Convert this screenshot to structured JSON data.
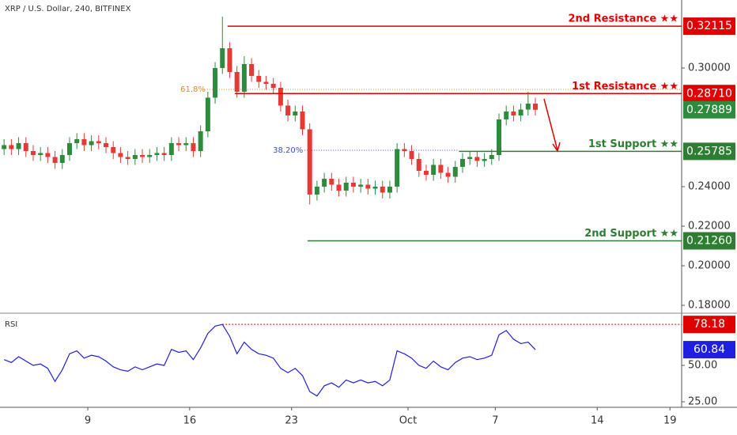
{
  "chart_data": [
    {
      "type": "candlestick",
      "title": "XRP / U.S. Dollar, 240, BITFINEX",
      "x": [
        3.25,
        3.75,
        4.25,
        4.75,
        5.25,
        5.75,
        6.25,
        6.75,
        7.25,
        7.75,
        8.25,
        8.75,
        9.25,
        9.75,
        10.25,
        10.75,
        11.25,
        11.75,
        12.25,
        12.75,
        13.25,
        13.75,
        14.25,
        14.75,
        15.25,
        15.75,
        16.25,
        16.75,
        17.25,
        17.75,
        18.25,
        18.75,
        19.25,
        19.75,
        20.25,
        20.75,
        21.25,
        21.75,
        22.25,
        22.75,
        23.25,
        23.75,
        24.25,
        24.75,
        25.25,
        25.75,
        26.25,
        26.75,
        27.25,
        27.75,
        28.25,
        28.75,
        29.25,
        29.75,
        30.25,
        30.75,
        31.25,
        31.75,
        32.25,
        32.75,
        33.25,
        33.75,
        34.25,
        34.75,
        35.25,
        35.75,
        36.25,
        36.75,
        37.25,
        37.75,
        38.25,
        38.75,
        39.25,
        39.75
      ],
      "open": [
        0.259,
        0.261,
        0.259,
        0.262,
        0.258,
        0.256,
        0.257,
        0.255,
        0.252,
        0.256,
        0.262,
        0.264,
        0.261,
        0.263,
        0.262,
        0.26,
        0.257,
        0.255,
        0.254,
        0.256,
        0.255,
        0.256,
        0.257,
        0.256,
        0.262,
        0.261,
        0.262,
        0.258,
        0.268,
        0.285,
        0.3,
        0.31,
        0.298,
        0.288,
        0.302,
        0.296,
        0.293,
        0.292,
        0.29,
        0.281,
        0.276,
        0.278,
        0.269,
        0.236,
        0.24,
        0.244,
        0.241,
        0.238,
        0.242,
        0.24,
        0.241,
        0.239,
        0.24,
        0.237,
        0.24,
        0.259,
        0.258,
        0.254,
        0.248,
        0.246,
        0.251,
        0.247,
        0.245,
        0.25,
        0.254,
        0.255,
        0.253,
        0.254,
        0.256,
        0.274,
        0.278,
        0.276,
        0.279,
        0.282
      ],
      "high": [
        0.264,
        0.264,
        0.265,
        0.265,
        0.261,
        0.26,
        0.26,
        0.258,
        0.259,
        0.265,
        0.267,
        0.267,
        0.266,
        0.266,
        0.265,
        0.263,
        0.26,
        0.258,
        0.259,
        0.259,
        0.259,
        0.26,
        0.26,
        0.265,
        0.265,
        0.265,
        0.265,
        0.271,
        0.288,
        0.303,
        0.326,
        0.313,
        0.301,
        0.306,
        0.305,
        0.299,
        0.296,
        0.295,
        0.293,
        0.284,
        0.281,
        0.281,
        0.272,
        0.243,
        0.247,
        0.247,
        0.244,
        0.245,
        0.245,
        0.244,
        0.244,
        0.243,
        0.243,
        0.243,
        0.262,
        0.262,
        0.261,
        0.257,
        0.251,
        0.254,
        0.254,
        0.25,
        0.253,
        0.257,
        0.258,
        0.258,
        0.257,
        0.259,
        0.277,
        0.281,
        0.281,
        0.282,
        0.288,
        0.285
      ],
      "low": [
        0.256,
        0.256,
        0.256,
        0.255,
        0.253,
        0.253,
        0.252,
        0.249,
        0.249,
        0.253,
        0.259,
        0.258,
        0.258,
        0.259,
        0.257,
        0.254,
        0.252,
        0.251,
        0.251,
        0.252,
        0.252,
        0.253,
        0.253,
        0.253,
        0.258,
        0.258,
        0.255,
        0.255,
        0.265,
        0.282,
        0.297,
        0.295,
        0.285,
        0.285,
        0.293,
        0.29,
        0.289,
        0.287,
        0.278,
        0.273,
        0.273,
        0.266,
        0.231,
        0.233,
        0.237,
        0.238,
        0.235,
        0.235,
        0.237,
        0.237,
        0.236,
        0.236,
        0.234,
        0.234,
        0.237,
        0.255,
        0.251,
        0.245,
        0.243,
        0.243,
        0.244,
        0.242,
        0.242,
        0.247,
        0.251,
        0.25,
        0.25,
        0.251,
        0.253,
        0.271,
        0.273,
        0.273,
        0.276,
        0.276
      ],
      "close": [
        0.261,
        0.259,
        0.262,
        0.258,
        0.256,
        0.257,
        0.255,
        0.252,
        0.256,
        0.262,
        0.264,
        0.261,
        0.263,
        0.262,
        0.26,
        0.257,
        0.255,
        0.254,
        0.256,
        0.255,
        0.256,
        0.257,
        0.256,
        0.262,
        0.261,
        0.262,
        0.258,
        0.268,
        0.285,
        0.3,
        0.31,
        0.298,
        0.288,
        0.302,
        0.296,
        0.293,
        0.292,
        0.29,
        0.281,
        0.276,
        0.278,
        0.269,
        0.236,
        0.24,
        0.244,
        0.241,
        0.238,
        0.242,
        0.24,
        0.241,
        0.239,
        0.24,
        0.237,
        0.24,
        0.259,
        0.258,
        0.254,
        0.248,
        0.246,
        0.251,
        0.247,
        0.245,
        0.25,
        0.254,
        0.255,
        0.253,
        0.254,
        0.256,
        0.274,
        0.278,
        0.276,
        0.279,
        0.282,
        0.27889
      ],
      "last_label": "0.27889",
      "up_color": "#2e8b3e",
      "down_color": "#e53935",
      "xlim": [
        2.97,
        49.8
      ],
      "xticks": [
        9,
        16,
        23,
        {
          "value": 31,
          "label": "Oct"
        },
        {
          "value": 37,
          "label": "7"
        },
        {
          "value": 44,
          "label": "14"
        },
        {
          "value": 49,
          "label": "19"
        }
      ],
      "ylim": [
        0.1764,
        0.3344
      ],
      "yticks": [
        {
          "value": 0.18,
          "label": "0.18000"
        },
        {
          "value": 0.2,
          "label": "0.20000"
        },
        {
          "value": 0.22,
          "label": "0.22000"
        },
        {
          "value": 0.24,
          "label": "0.24000"
        },
        {
          "value": 0.3,
          "label": "0.30000"
        }
      ],
      "levels": [
        {
          "name": "2nd Resistance ★★",
          "value": 0.32115,
          "label": "0.32115",
          "start": 18.6,
          "color": "#e00000"
        },
        {
          "name": "1st Resistance ★★",
          "value": 0.2871,
          "label": "0.28710",
          "start": 19.1,
          "color": "#e00000"
        },
        {
          "name": "1st Support ★★",
          "value": 0.25785,
          "label": "0.25785",
          "start": 34.5,
          "color": "#2e7d32"
        },
        {
          "name": "2nd Support ★★",
          "value": 0.2126,
          "label": "0.21260",
          "start": 24.1,
          "color": "#2e7d32"
        }
      ],
      "fib_levels": [
        {
          "label": "61.8%",
          "value": 0.2892,
          "start": 17.2,
          "end": 49.8,
          "color": "#e08a1e"
        },
        {
          "label": "38.20%",
          "value": 0.2584,
          "start": 23.9,
          "end": 34.5,
          "color": "#3f51b5"
        }
      ]
    },
    {
      "type": "line",
      "title": "RSI",
      "values": [
        54,
        52,
        56,
        53,
        50,
        51,
        48,
        39,
        47,
        58,
        60,
        55,
        57,
        56,
        53,
        49,
        47,
        46,
        49,
        47,
        49,
        51,
        50,
        61,
        59,
        60,
        54,
        62,
        72,
        77,
        78.18,
        70,
        58,
        66,
        61,
        58,
        57,
        55,
        48,
        45,
        48,
        43,
        32,
        29,
        36,
        38,
        35,
        40,
        38,
        40,
        38,
        39,
        36,
        40,
        60,
        58,
        55,
        50,
        48,
        53,
        49,
        47,
        52,
        55,
        56,
        54,
        55,
        57,
        71,
        74,
        68,
        65,
        66,
        60.84
      ],
      "last_label": "60.84",
      "color": "#1f1fe0",
      "ylim": [
        21.2,
        84.8
      ],
      "yticks": [
        {
          "value": 50,
          "label": "50.00"
        },
        {
          "value": 25,
          "label": "25.00"
        }
      ],
      "level": {
        "value": 78.18,
        "label": "78.18",
        "color": "#e00000"
      }
    }
  ]
}
